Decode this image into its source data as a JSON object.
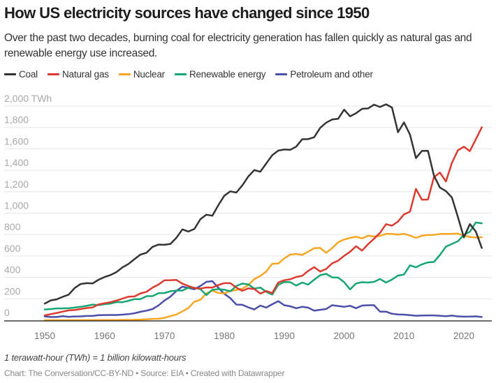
{
  "title": "How US electricity sources have changed since 1950",
  "subtitle": "Over the past two decades, burning coal for electricity generation has fallen quickly as natural gas and renewable energy use increased.",
  "note": "1 terawatt-hour (TWh) = 1 billion kilowatt-hours",
  "credit": "Chart: The Conversation/CC-BY-ND • Source: EIA • Created with Datawrapper",
  "chart_data": {
    "type": "line",
    "xlim": [
      1950,
      2023
    ],
    "ylim": [
      0,
      2000
    ],
    "grid": true,
    "legend_placement": "top-left",
    "y_unit": "TWh",
    "x_ticks": [
      "1950",
      "1960",
      "1970",
      "1980",
      "1990",
      "2000",
      "2010",
      "2020"
    ],
    "y_ticks": [
      "0",
      "200",
      "400",
      "600",
      "800",
      "1,000",
      "1,200",
      "1,400",
      "1,600",
      "1,800",
      "2,000 TWh"
    ],
    "x_start": 1950,
    "series": [
      {
        "name": "Coal",
        "color": "#333333",
        "values": [
          155,
          185,
          195,
          218,
          239,
          301,
          338,
          346,
          344,
          378,
          403,
          422,
          450,
          494,
          526,
          571,
          613,
          630,
          685,
          706,
          704,
          713,
          771,
          848,
          828,
          853,
          944,
          985,
          976,
          1075,
          1162,
          1203,
          1192,
          1259,
          1342,
          1402,
          1386,
          1464,
          1541,
          1584,
          1594,
          1591,
          1621,
          1690,
          1691,
          1709,
          1796,
          1845,
          1874,
          1881,
          1966,
          1904,
          1933,
          1974,
          1978,
          2013,
          1991,
          2016,
          1986,
          1756,
          1847,
          1733,
          1514,
          1581,
          1582,
          1352,
          1239,
          1206,
          1146,
          965,
          774,
          898,
          828,
          675
        ]
      },
      {
        "name": "Natural gas",
        "color": "#dc3a2f",
        "values": [
          45,
          57,
          68,
          80,
          92,
          95,
          104,
          114,
          120,
          147,
          158,
          169,
          184,
          202,
          220,
          222,
          251,
          265,
          304,
          333,
          373,
          374,
          376,
          341,
          320,
          300,
          295,
          306,
          305,
          329,
          346,
          346,
          305,
          274,
          297,
          292,
          249,
          273,
          253,
          352,
          373,
          382,
          404,
          415,
          460,
          496,
          455,
          479,
          531,
          556,
          601,
          639,
          691,
          650,
          710,
          761,
          816,
          897,
          883,
          921,
          988,
          1014,
          1226,
          1125,
          1127,
          1335,
          1379,
          1296,
          1469,
          1586,
          1620,
          1579,
          1689,
          1802
        ]
      },
      {
        "name": "Nuclear",
        "color": "#f6a623",
        "values": [
          0,
          0,
          0,
          0,
          0,
          0,
          0,
          0.5,
          0.5,
          1,
          1,
          2,
          2,
          3,
          3,
          4,
          6,
          8,
          13,
          14,
          22,
          38,
          54,
          83,
          114,
          173,
          191,
          251,
          276,
          255,
          251,
          273,
          283,
          294,
          328,
          384,
          414,
          455,
          527,
          529,
          577,
          613,
          619,
          610,
          640,
          673,
          675,
          629,
          673,
          728,
          754,
          769,
          780,
          764,
          789,
          782,
          787,
          806,
          806,
          799,
          807,
          790,
          769,
          789,
          797,
          797,
          806,
          805,
          807,
          809,
          790,
          778,
          772,
          775
        ]
      },
      {
        "name": "Renewable energy",
        "color": "#15a672",
        "values": [
          100,
          104,
          110,
          111,
          113,
          118,
          125,
          134,
          146,
          141,
          150,
          155,
          170,
          168,
          182,
          197,
          197,
          225,
          225,
          253,
          254,
          271,
          277,
          277,
          305,
          303,
          290,
          235,
          284,
          290,
          285,
          270,
          320,
          342,
          335,
          295,
          305,
          265,
          240,
          330,
          357,
          356,
          324,
          352,
          333,
          378,
          420,
          433,
          400,
          398,
          356,
          288,
          343,
          355,
          352,
          358,
          385,
          352,
          380,
          417,
          427,
          513,
          494,
          522,
          540,
          544,
          609,
          687,
          713,
          737,
          797,
          826,
          913,
          905
        ]
      },
      {
        "name": "Petroleum and other",
        "color": "#4b4fa8",
        "values": [
          35,
          30,
          30,
          38,
          32,
          35,
          36,
          40,
          40,
          47,
          48,
          49,
          49,
          52,
          57,
          65,
          79,
          89,
          104,
          138,
          184,
          220,
          274,
          314,
          301,
          289,
          320,
          358,
          365,
          303,
          246,
          206,
          146,
          144,
          120,
          100,
          137,
          118,
          149,
          178,
          140,
          130,
          112,
          125,
          117,
          90,
          97,
          105,
          140,
          133,
          125,
          135,
          112,
          137,
          140,
          140,
          80,
          80,
          60,
          54,
          52,
          47,
          42,
          44,
          45,
          45,
          42,
          37,
          43,
          36,
          33,
          34,
          36,
          30
        ]
      }
    ]
  }
}
